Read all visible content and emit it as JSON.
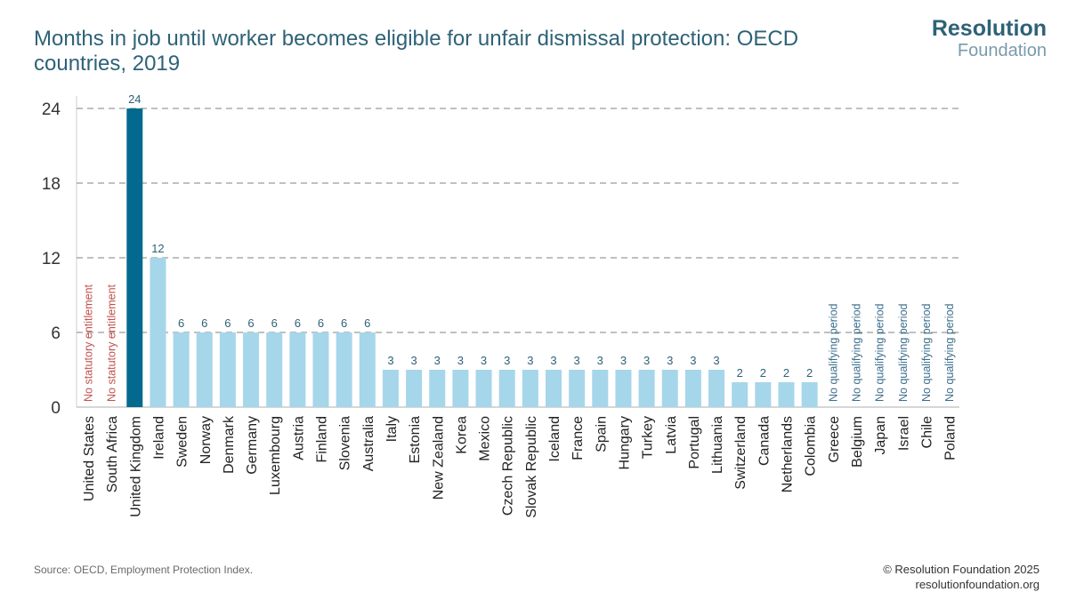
{
  "title": "Months in job until worker becomes eligible for unfair dismissal protection: OECD countries, 2019",
  "logo": {
    "line1": "Resolution",
    "line2": "Foundation"
  },
  "source": "Source: OECD, Employment Protection Index.",
  "copyright": {
    "line1": "© Resolution Foundation 2025",
    "line2": "resolutionfoundation.org"
  },
  "colors": {
    "highlight": "#03698f",
    "bar": "#a6d6ea",
    "no_entitlement": "#c0504d",
    "no_period": "#3b6d8c",
    "grid": "#9a9a9a",
    "label": "#2e6277"
  },
  "chart_data": {
    "type": "bar",
    "title": "Months in job until worker becomes eligible for unfair dismissal protection: OECD countries, 2019",
    "xlabel": "",
    "ylabel": "",
    "ylim": [
      0,
      24
    ],
    "yticks": [
      0,
      6,
      12,
      18,
      24
    ],
    "highlight": "United Kingdom",
    "categories": [
      "United States",
      "South Africa",
      "United Kingdom",
      "Ireland",
      "Sweden",
      "Norway",
      "Denmark",
      "Germany",
      "Luxembourg",
      "Austria",
      "Finland",
      "Slovenia",
      "Australia",
      "Italy",
      "Estonia",
      "New Zealand",
      "Korea",
      "Mexico",
      "Czech Republic",
      "Slovak Republic",
      "Iceland",
      "France",
      "Spain",
      "Hungary",
      "Turkey",
      "Latvia",
      "Portugal",
      "Lithuania",
      "Switzerland",
      "Canada",
      "Netherlands",
      "Colombia",
      "Greece",
      "Belgium",
      "Japan",
      "Israel",
      "Chile",
      "Poland"
    ],
    "values": [
      null,
      null,
      24,
      12,
      6,
      6,
      6,
      6,
      6,
      6,
      6,
      6,
      6,
      3,
      3,
      3,
      3,
      3,
      3,
      3,
      3,
      3,
      3,
      3,
      3,
      3,
      3,
      3,
      2,
      2,
      2,
      2,
      null,
      null,
      null,
      null,
      null,
      null
    ],
    "notes": [
      "No statutory entitlement",
      "No statutory entitlement",
      null,
      null,
      null,
      null,
      null,
      null,
      null,
      null,
      null,
      null,
      null,
      null,
      null,
      null,
      null,
      null,
      null,
      null,
      null,
      null,
      null,
      null,
      null,
      null,
      null,
      null,
      null,
      null,
      null,
      null,
      "No qualifying period",
      "No qualifying period",
      "No qualifying period",
      "No qualifying period",
      "No qualifying period",
      "No qualifying period"
    ]
  }
}
